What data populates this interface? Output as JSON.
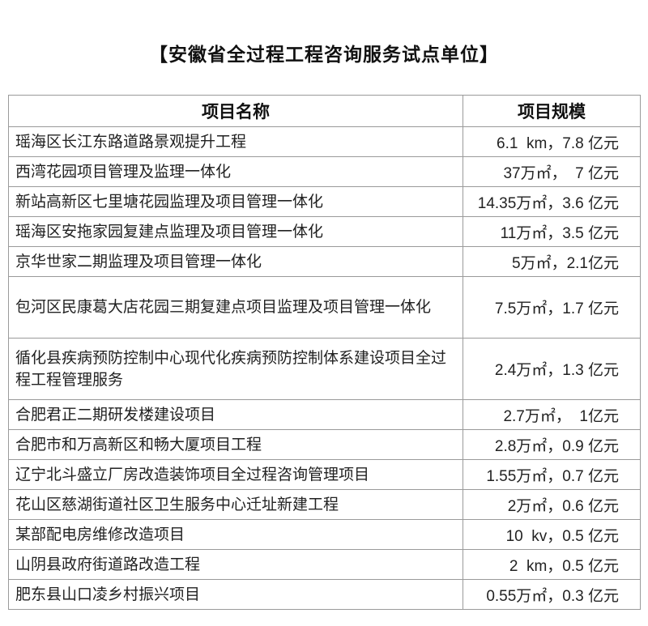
{
  "title": "【安徽省全过程工程咨询服务试点单位】",
  "table": {
    "headers": [
      "项目名称",
      "项目规模"
    ],
    "rows": [
      {
        "name": "瑶海区长江东路道路景观提升工程",
        "scale": "6.1  km，7.8 亿元"
      },
      {
        "name": "西湾花园项目管理及监理一体化",
        "scale": "37万㎡，  7 亿元"
      },
      {
        "name": "新站高新区七里塘花园监理及项目管理一体化",
        "scale": "14.35万㎡，3.6 亿元"
      },
      {
        "name": "瑶海区安拖家园复建点监理及项目管理一体化",
        "scale": "11万㎡，3.5 亿元"
      },
      {
        "name": "京华世家二期监理及项目管理一体化",
        "scale": "5万㎡，2.1亿元"
      },
      {
        "name": "包河区民康葛大店花园三期复建点项目监理及项目管理一体化",
        "scale": "7.5万㎡，1.7 亿元"
      },
      {
        "name": "循化县疾病预防控制中心现代化疾病预防控制体系建设项目全过程工程管理服务",
        "scale": "2.4万㎡，1.3 亿元"
      },
      {
        "name": "合肥君正二期研发楼建设项目",
        "scale": "2.7万㎡，  1亿元"
      },
      {
        "name": "合肥市和万高新区和畅大厦项目工程",
        "scale": "2.8万㎡，0.9 亿元"
      },
      {
        "name": "辽宁北斗盛立厂房改造装饰项目全过程咨询管理项目",
        "scale": "1.55万㎡，0.7 亿元"
      },
      {
        "name": "花山区慈湖街道社区卫生服务中心迁址新建工程",
        "scale": "2万㎡，0.6 亿元"
      },
      {
        "name": "某部配电房维修改造项目",
        "scale": "10  kv，0.5 亿元"
      },
      {
        "name": "山阴县政府街道路改造工程",
        "scale": "2  km，0.5 亿元"
      },
      {
        "name": "肥东县山口凌乡村振兴项目",
        "scale": "0.55万㎡，0.3 亿元"
      }
    ]
  }
}
